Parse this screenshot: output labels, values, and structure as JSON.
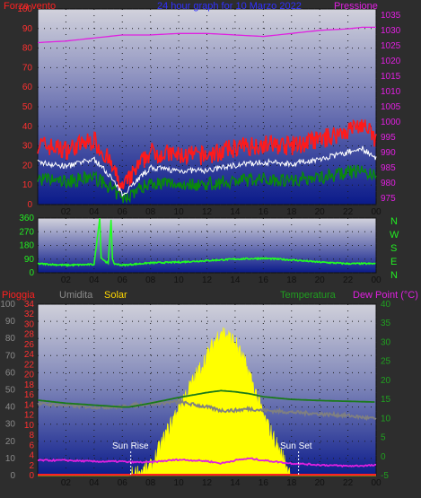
{
  "header": {
    "wind_label": "Forza vento",
    "title": "24 hour graph for 10 Marzo 2022",
    "pressure_label": "Pressione",
    "rain_label": "Pioggia",
    "humidity_label": "Umidita",
    "solar_label": "Solar",
    "temperature_label": "Temperatura",
    "dewpoint_label": "Dew Point (°C)",
    "sunrise_label": "Sun Rise",
    "sunset_label": "Sun Set"
  },
  "colors": {
    "wind": "#ff1a1a",
    "gust_avg": "#ffffff",
    "wind_avg": "#0a8a0a",
    "pressure": "#e020e0",
    "direction": "#22ff22",
    "humidity": "#808080",
    "solar": "#ffff00",
    "temperature": "#1a7a1a",
    "dewpoint": "#e020e0",
    "rain": "#ff2020"
  },
  "chart_data": [
    {
      "type": "line",
      "title": "24 hour graph for 10 Marzo 2022",
      "x_ticks": [
        "02",
        "04",
        "06",
        "08",
        "10",
        "12",
        "14",
        "16",
        "18",
        "20",
        "22",
        "00"
      ],
      "y_left_ticks": [
        0,
        10,
        20,
        30,
        40,
        50,
        60,
        70,
        80,
        90,
        100
      ],
      "y_right_ticks": [
        975,
        980,
        985,
        990,
        995,
        1000,
        1005,
        1010,
        1015,
        1020,
        1025,
        1030,
        1035
      ],
      "ylim_left": [
        0,
        100
      ],
      "ylim_right": [
        973,
        1037
      ],
      "hours": [
        0,
        2,
        4,
        5,
        6,
        7,
        8,
        10,
        12,
        14,
        16,
        18,
        20,
        22,
        23,
        24
      ],
      "series": [
        {
          "name": "Forza vento",
          "values": [
            28,
            25,
            30,
            20,
            5,
            15,
            24,
            22,
            22,
            26,
            28,
            27,
            30,
            35,
            38,
            30
          ]
        },
        {
          "name": "Pressione",
          "values": [
            1026,
            1026.5,
            1027.5,
            1028,
            1028.5,
            1028.5,
            1028.5,
            1029,
            1029,
            1028.5,
            1028,
            1029,
            1030,
            1030.5,
            1031,
            1031
          ]
        }
      ],
      "grid": true
    },
    {
      "type": "scatter",
      "title": "",
      "x_ticks": [
        "02",
        "04",
        "06",
        "08",
        "10",
        "12",
        "14",
        "16",
        "18",
        "20",
        "22",
        "00"
      ],
      "y_left_ticks": [
        0,
        90,
        180,
        270,
        360
      ],
      "y_right_ticks": [
        "N",
        "W",
        "S",
        "E",
        "N"
      ],
      "ylim": [
        0,
        360
      ],
      "hours": [
        0,
        2,
        4,
        4.4,
        4.5,
        4.6,
        5,
        5.2,
        5.3,
        5.4,
        6,
        8,
        10,
        12,
        14,
        16,
        18,
        20,
        22,
        24
      ],
      "series": [
        {
          "name": "Direzione vento",
          "values": [
            60,
            50,
            55,
            360,
            100,
            90,
            60,
            350,
            90,
            60,
            50,
            65,
            70,
            80,
            90,
            95,
            85,
            70,
            60,
            60
          ]
        }
      ],
      "grid": true
    },
    {
      "type": "area",
      "title": "",
      "x_ticks": [
        "02",
        "04",
        "06",
        "08",
        "10",
        "12",
        "14",
        "16",
        "18",
        "20",
        "22",
        "00"
      ],
      "y_rain_ticks": [
        0,
        2,
        4,
        6,
        8,
        10,
        12,
        14,
        16,
        18,
        20,
        22,
        24,
        26,
        28,
        30,
        32,
        34
      ],
      "y_humidity_ticks": [
        0,
        10,
        20,
        30,
        40,
        50,
        60,
        70,
        80,
        90,
        100
      ],
      "y_temp_ticks": [
        -5,
        0,
        5,
        10,
        15,
        20,
        25,
        30,
        35,
        40
      ],
      "ylim_rain": [
        0,
        34
      ],
      "ylim_humidity": [
        0,
        100
      ],
      "ylim_temp": [
        -5,
        40
      ],
      "hours": [
        0,
        2,
        4,
        6,
        6.5,
        8,
        10,
        12,
        13,
        14,
        15,
        16,
        18,
        20,
        22,
        24
      ],
      "series": [
        {
          "name": "Umidita",
          "values": [
            42,
            41,
            40,
            40,
            41,
            42,
            43,
            40,
            38,
            38,
            39,
            38,
            37,
            36,
            35,
            33
          ]
        },
        {
          "name": "Solar",
          "values": [
            0,
            0,
            0,
            0,
            0,
            5,
            40,
            70,
            85,
            78,
            60,
            35,
            0,
            0,
            0,
            0
          ]
        },
        {
          "name": "Temperatura",
          "values": [
            14.8,
            14,
            13.5,
            13,
            13,
            14,
            15.5,
            16.8,
            17.3,
            17,
            16.5,
            15.7,
            15,
            14.7,
            14.5,
            14.3
          ]
        },
        {
          "name": "Dew Point (°C)",
          "values": [
            -1,
            -1,
            -1.3,
            -1.3,
            -1.5,
            -1.5,
            -0.8,
            -1.2,
            -1.8,
            -1,
            -0.5,
            -1,
            -1.8,
            -2.2,
            -2.5,
            -2.3
          ]
        },
        {
          "name": "Pioggia",
          "values": [
            0,
            0,
            0,
            0,
            0,
            0,
            0,
            0,
            0,
            0,
            0,
            0,
            0,
            0,
            0,
            0
          ]
        }
      ],
      "sunrise_hour": 6.6,
      "sunset_hour": 18.5,
      "grid": true
    }
  ]
}
